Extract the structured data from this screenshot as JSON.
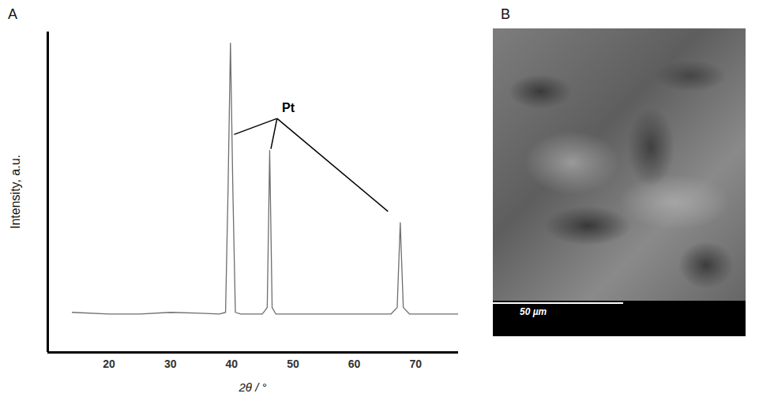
{
  "chart_data": {
    "type": "line",
    "panel_label": "A",
    "x_label": "2θ / °",
    "y_label": "Intensity, a.u.",
    "x": [
      14,
      20,
      25,
      30,
      35,
      38,
      39,
      39.4,
      39.8,
      40.2,
      40.6,
      41.5,
      45,
      45.8,
      46.2,
      46.6,
      47.2,
      50,
      55,
      60,
      66,
      67,
      67.5,
      68,
      69,
      72,
      77
    ],
    "values": [
      12.5,
      12,
      12,
      12.5,
      12.2,
      12,
      12.5,
      50,
      96.5,
      50,
      12.5,
      12,
      12,
      14,
      63,
      14,
      12,
      12,
      12,
      12,
      12,
      14,
      40.5,
      14,
      12,
      12,
      12
    ],
    "color": "#6e6e6e",
    "xlim": [
      10,
      77
    ],
    "xticks": [
      20,
      30,
      40,
      50,
      60,
      70
    ],
    "ylim": [
      0,
      100
    ],
    "tick_labels": "x",
    "grid": false,
    "annotations": [
      {
        "text": "Pt",
        "x": 48.2,
        "y": 75,
        "line_from": {
          "x": 47.4,
          "y": 73
        },
        "points_to": [
          {
            "x": 40.4,
            "y": 68
          },
          {
            "x": 46.4,
            "y": 63.5
          },
          {
            "x": 65.5,
            "y": 44
          }
        ]
      }
    ]
  },
  "image_panel": {
    "panel_label": "B",
    "scale_bar_label": "50 µm"
  }
}
